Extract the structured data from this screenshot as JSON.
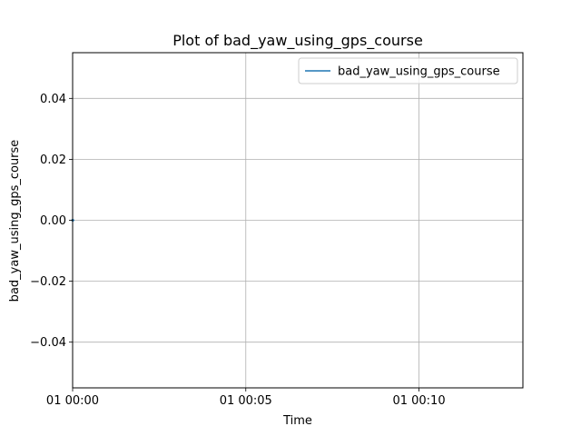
{
  "chart_data": {
    "type": "line",
    "title": "Plot of bad_yaw_using_gps_course",
    "xlabel": "Time",
    "ylabel": "bad_yaw_using_gps_course",
    "x_ticks": [
      "01 00:00",
      "01 00:05",
      "01 00:10"
    ],
    "y_ticks": [
      "0.04",
      "0.02",
      "0.00",
      "−0.02",
      "−0.04"
    ],
    "y_tick_values": [
      0.04,
      0.02,
      0.0,
      -0.02,
      -0.04
    ],
    "ylim": [
      -0.055,
      0.055
    ],
    "xlim_minutes": [
      0,
      13
    ],
    "x_tick_minutes": [
      0,
      5,
      10
    ],
    "grid": true,
    "legend_position": "top-right",
    "series": [
      {
        "name": "bad_yaw_using_gps_course",
        "color": "#1f77b4",
        "x_minutes": [
          0,
          0.05
        ],
        "values": [
          0,
          0
        ]
      }
    ]
  }
}
